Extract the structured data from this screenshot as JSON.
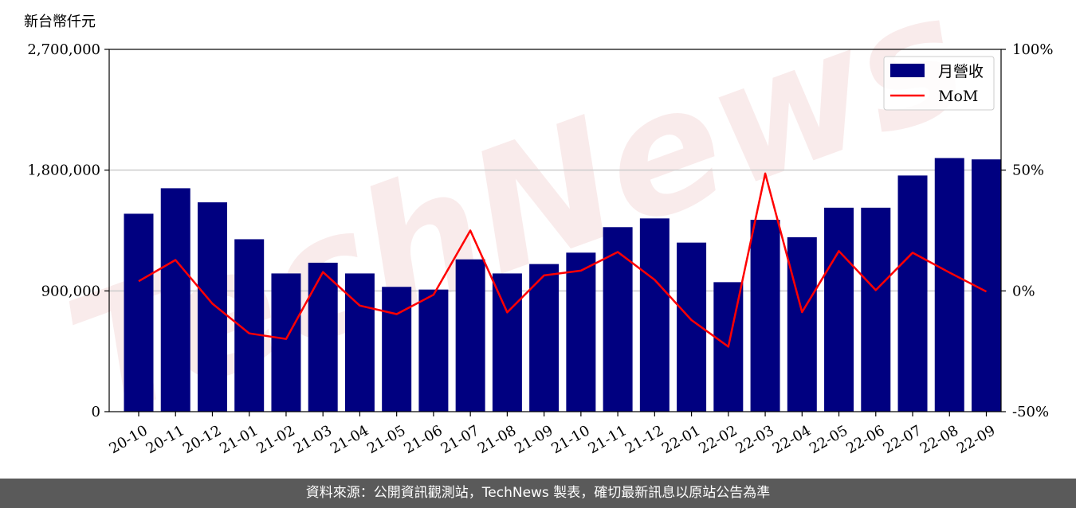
{
  "chart_data": {
    "type": "bar",
    "y_unit_label": "新台幣仟元",
    "categories": [
      "20-10",
      "20-11",
      "20-12",
      "21-01",
      "21-02",
      "21-03",
      "21-04",
      "21-05",
      "21-06",
      "21-07",
      "21-08",
      "21-09",
      "21-10",
      "21-11",
      "21-12",
      "22-01",
      "22-02",
      "22-03",
      "22-04",
      "22-05",
      "22-06",
      "22-07",
      "22-08",
      "22-09"
    ],
    "series": [
      {
        "name": "月營收",
        "type": "bar",
        "axis": "left",
        "color": "#000080",
        "values": [
          1475000,
          1665000,
          1560000,
          1285000,
          1030000,
          1110000,
          1030000,
          930000,
          910000,
          1135000,
          1030000,
          1100000,
          1185000,
          1375000,
          1440000,
          1260000,
          965000,
          1430000,
          1300000,
          1520000,
          1520000,
          1760000,
          1890000,
          1880000
        ]
      },
      {
        "name": "MoM",
        "type": "line",
        "axis": "right",
        "color": "#ff0000",
        "values": [
          4,
          12.8,
          -5.3,
          -17.6,
          -19.9,
          7.8,
          -6.1,
          -9.6,
          -1.6,
          25,
          -8.9,
          6.4,
          8.4,
          16.1,
          4.6,
          -12.1,
          -23.1,
          48.6,
          -8.8,
          16.5,
          0.3,
          15.8,
          7.6,
          -0.3
        ]
      }
    ],
    "yleft": {
      "lim": [
        0,
        2700000
      ],
      "ticks": [
        0,
        900000,
        1800000,
        2700000
      ],
      "tick_labels": [
        "0",
        "900,000",
        "1,800,000",
        "2,700,000"
      ]
    },
    "yright": {
      "lim": [
        -50,
        100
      ],
      "ticks": [
        -50,
        0,
        50,
        100
      ],
      "tick_labels": [
        "-50%",
        "0%",
        "50%",
        "100%"
      ]
    },
    "grid": "horizontal",
    "legend_position": "top-right"
  },
  "watermark": "TechNews",
  "footer": "資料來源：公開資訊觀測站，TechNews 製表，確切最新訊息以原站公告為準"
}
